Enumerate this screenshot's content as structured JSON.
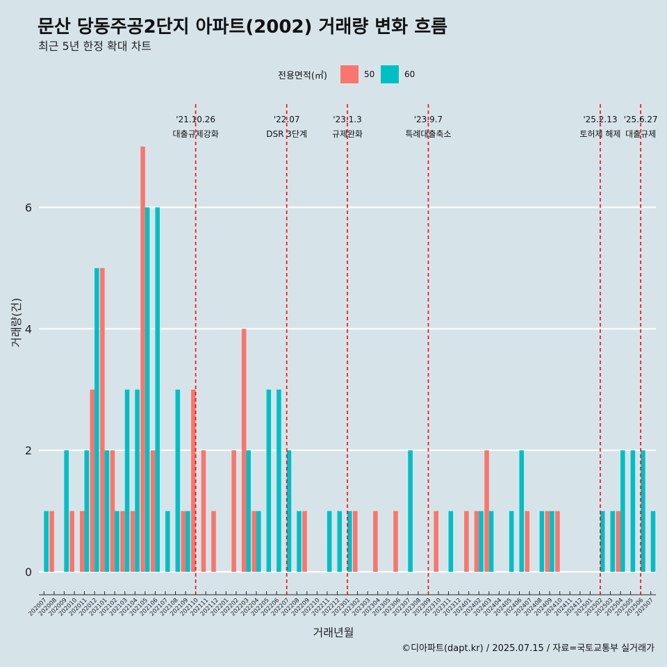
{
  "title": "문산 당동주공2단지 아파트(2002) 거래량 변화 흐름",
  "subtitle": "최근 5년 한정 확대 차트",
  "caption": "©디아파트(dapt.kr) / 2025.07.15 / 자료=국토교통부 실거래가",
  "legend": {
    "title": "전용면적(㎡)",
    "items": [
      {
        "label": "50",
        "color": "#F8766D"
      },
      {
        "label": "60",
        "color": "#00BFC4"
      }
    ]
  },
  "colors": {
    "background": "#d6e4ea",
    "grid": "#ffffff",
    "event_line": "#ff0000"
  },
  "chart_data": {
    "type": "bar",
    "xlabel": "거래년월",
    "ylabel": "거래량(건)",
    "ylim": [
      0,
      7
    ],
    "yticks": [
      0,
      2,
      4,
      6
    ],
    "categories": [
      "202007",
      "202008",
      "202009",
      "202010",
      "202011",
      "202012",
      "202101",
      "202102",
      "202103",
      "202104",
      "202105",
      "202106",
      "202107",
      "202108",
      "202109",
      "202110",
      "202111",
      "202112",
      "202201",
      "202202",
      "202203",
      "202204",
      "202205",
      "202206",
      "202207",
      "202208",
      "202209",
      "202210",
      "202211",
      "202212",
      "202301",
      "202302",
      "202303",
      "202304",
      "202305",
      "202306",
      "202307",
      "202308",
      "202309",
      "202310",
      "202311",
      "202312",
      "202401",
      "202402",
      "202403",
      "202404",
      "202405",
      "202406",
      "202407",
      "202408",
      "202409",
      "202410",
      "202411",
      "202412",
      "202501",
      "202502",
      "202503",
      "202504",
      "202505",
      "202506",
      "202507"
    ],
    "series": [
      {
        "name": "50",
        "values": [
          0,
          1,
          0,
          1,
          1,
          3,
          5,
          2,
          1,
          1,
          7,
          2,
          0,
          0,
          1,
          3,
          2,
          1,
          0,
          2,
          4,
          1,
          0,
          0,
          0,
          0,
          1,
          0,
          0,
          0,
          0,
          1,
          0,
          1,
          0,
          1,
          0,
          0,
          0,
          1,
          0,
          0,
          1,
          1,
          2,
          0,
          0,
          0,
          1,
          0,
          1,
          1,
          0,
          0,
          0,
          0,
          0,
          1,
          0,
          0,
          0
        ]
      },
      {
        "name": "60",
        "values": [
          1,
          0,
          2,
          0,
          2,
          5,
          2,
          1,
          3,
          3,
          6,
          6,
          1,
          3,
          1,
          0,
          0,
          0,
          0,
          0,
          2,
          1,
          3,
          3,
          2,
          1,
          0,
          0,
          1,
          1,
          1,
          0,
          0,
          0,
          0,
          0,
          2,
          0,
          0,
          0,
          1,
          0,
          0,
          1,
          1,
          0,
          1,
          2,
          0,
          1,
          1,
          0,
          0,
          0,
          0,
          1,
          1,
          2,
          2,
          2,
          1
        ]
      }
    ],
    "events": [
      {
        "month": "202110",
        "date": "'21.10.26",
        "label": "대출규제강화"
      },
      {
        "month": "202207",
        "date": "'22.07",
        "label": "DSR 3단계"
      },
      {
        "month": "202301",
        "date": "'23.1.3",
        "label": "규제완화"
      },
      {
        "month": "202309",
        "date": "'23.9.7",
        "label": "특례대출축소"
      },
      {
        "month": "202502",
        "date": "'25.2.13",
        "label": "토허제 해제"
      },
      {
        "month": "202506",
        "date": "'25.6.27",
        "label": "대출규제"
      }
    ]
  }
}
